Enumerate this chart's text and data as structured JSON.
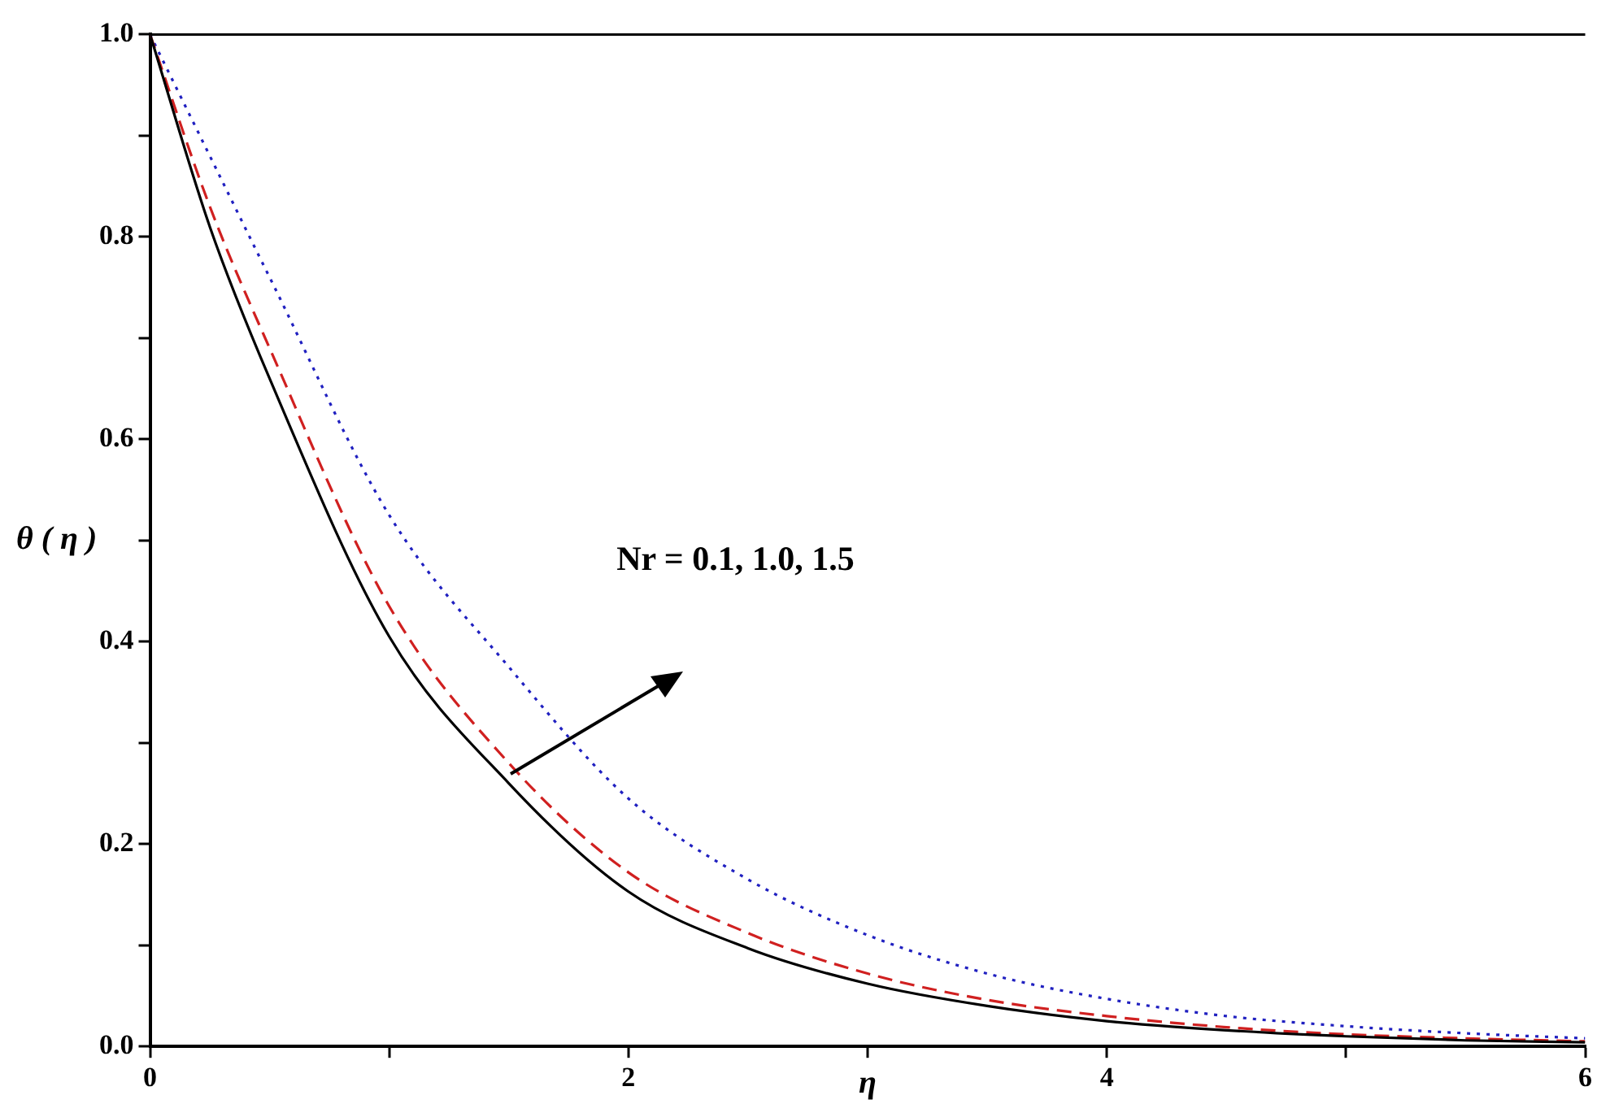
{
  "chart_data": {
    "type": "line",
    "xlabel": "η",
    "ylabel": "θ ( η )",
    "x": [
      0,
      0.25,
      0.5,
      1,
      1.5,
      2,
      2.5,
      3,
      3.5,
      4,
      4.5,
      5,
      5.5,
      6
    ],
    "series": [
      {
        "color": "#000000",
        "line_style": "solid",
        "values": [
          1,
          0.81,
          0.66,
          0.405,
          0.26,
          0.153,
          0.097,
          0.062,
          0.04,
          0.025,
          0.016,
          0.01,
          0.006,
          0.004
        ]
      },
      {
        "color": "#d02020",
        "line_style": "dashed",
        "values": [
          1,
          0.83,
          0.69,
          0.435,
          0.28,
          0.172,
          0.112,
          0.072,
          0.046,
          0.03,
          0.019,
          0.012,
          0.008,
          0.005
        ]
      },
      {
        "color": "#2020c0",
        "line_style": "dotted",
        "values": [
          1,
          0.88,
          0.76,
          0.525,
          0.375,
          0.245,
          0.165,
          0.11,
          0.072,
          0.047,
          0.03,
          0.02,
          0.013,
          0.008
        ]
      }
    ],
    "xlim": [
      0,
      6
    ],
    "xticks": [
      0,
      {
        "value": 1,
        "label": null
      },
      2,
      {
        "value": 3,
        "label": null
      },
      4,
      {
        "value": 5,
        "label": null
      },
      6
    ],
    "ylim": [
      0,
      1
    ],
    "yticks": [
      "0.0",
      {
        "value": 0.1,
        "label": null
      },
      {
        "value": 0.2,
        "label": "0.2"
      },
      {
        "value": 0.3,
        "label": null
      },
      {
        "value": 0.4,
        "label": "0.4"
      },
      {
        "value": 0.5,
        "label": null
      },
      {
        "value": 0.6,
        "label": "0.6"
      },
      {
        "value": 0.7,
        "label": null
      },
      {
        "value": 0.8,
        "label": "0.8"
      },
      {
        "value": 0.9,
        "label": null
      },
      {
        "value": 1,
        "label": "1.0"
      }
    ],
    "annotations": [
      "Nr = 0.1, 1.0, 1.5"
    ],
    "grid": false,
    "legend": false,
    "marker": "none"
  }
}
